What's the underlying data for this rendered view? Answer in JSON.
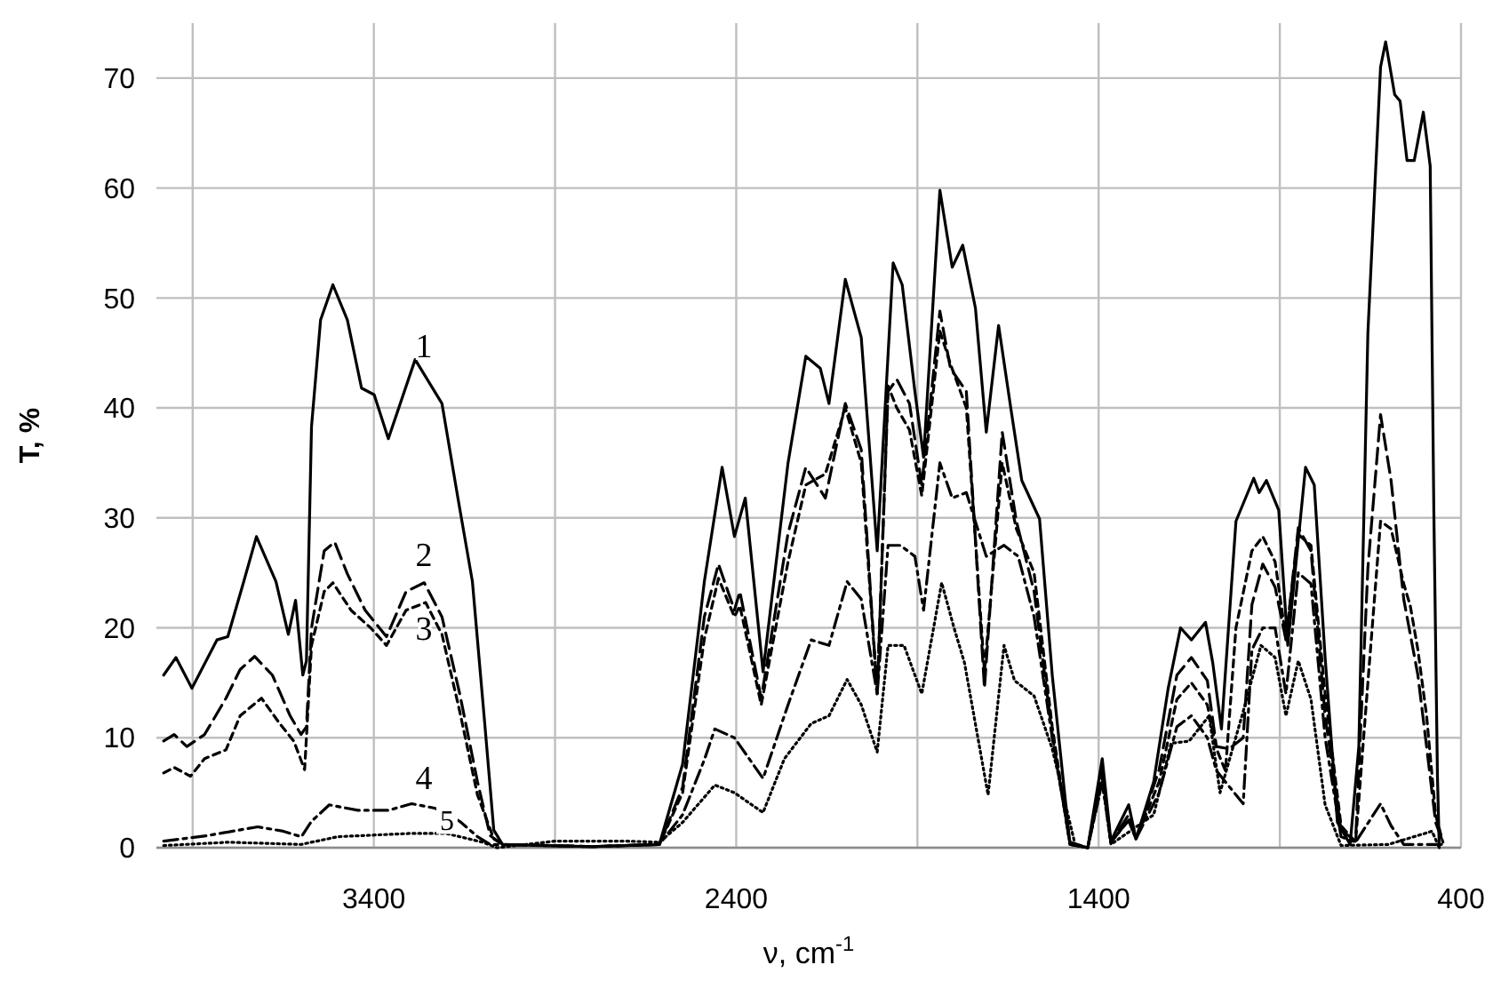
{
  "chart_data": {
    "type": "line",
    "xlabel": "ν, cm$^{-1}$",
    "ylabel": "T, %",
    "xlim": [
      4000,
      400
    ],
    "ylim": [
      0,
      75
    ],
    "xticks": [
      {
        "value": 3900,
        "label": null
      },
      3400,
      {
        "value": 2900,
        "label": null
      },
      2400,
      {
        "value": 1900,
        "label": null
      },
      1400,
      {
        "value": 900,
        "label": null
      },
      400
    ],
    "yticks": [
      0,
      10,
      20,
      30,
      40,
      50,
      60,
      70
    ],
    "grid": true,
    "marker": "none",
    "series": [
      {
        "name": "1",
        "color": "#000000",
        "line_style": "solid",
        "x": [
          3980,
          3946,
          3902,
          3833,
          3803,
          3759,
          3724,
          3670,
          3636,
          3616,
          3596,
          3586,
          3572,
          3547,
          3513,
          3473,
          3434,
          3399,
          3360,
          3286,
          3212,
          3168,
          3128,
          3094,
          3069,
          3045,
          2800,
          2612,
          2548,
          2488,
          2439,
          2405,
          2375,
          2326,
          2257,
          2208,
          2168,
          2144,
          2099,
          2055,
          2011,
          1967,
          1942,
          1907,
          1883,
          1838,
          1804,
          1775,
          1740,
          1710,
          1676,
          1642,
          1612,
          1563,
          1528,
          1479,
          1430,
          1390,
          1366,
          1317,
          1297,
          1248,
          1208,
          1174,
          1144,
          1105,
          1085,
          1061,
          1021,
          972,
          957,
          937,
          903,
          878,
          829,
          805,
          775,
          741,
          706,
          682,
          657,
          622,
          608,
          583,
          568,
          549,
          529,
          504,
          485,
          475,
          465,
          460
        ],
        "values": [
          15.7,
          17.3,
          14.5,
          18.9,
          19.2,
          24.2,
          28.3,
          24.2,
          19.4,
          22.5,
          15.7,
          17,
          38.3,
          48,
          51.2,
          48,
          41.8,
          41.2,
          37.2,
          44.4,
          40.4,
          31.8,
          24.2,
          11.3,
          1.6,
          0.3,
          0.1,
          0.3,
          7.6,
          24.2,
          34.6,
          28.3,
          31.8,
          16,
          35,
          44.7,
          43.6,
          40.4,
          51.7,
          46.4,
          27,
          53.2,
          51.2,
          41.5,
          35.5,
          59.8,
          52.8,
          54.8,
          49.1,
          37.8,
          47.5,
          39.9,
          33.4,
          29.9,
          15.7,
          0.3,
          0,
          8.1,
          0.6,
          3.9,
          0.8,
          6,
          14.5,
          20,
          18.9,
          20.5,
          16.8,
          10.8,
          29.7,
          33.6,
          32.3,
          33.4,
          30.7,
          18.4,
          34.6,
          33,
          17.3,
          2.3,
          0.3,
          9.2,
          46.8,
          71,
          73.3,
          68.5,
          67.9,
          62.5,
          62.5,
          66.9,
          62,
          30.7,
          6.5,
          0
        ]
      },
      {
        "name": "2",
        "color": "#000000",
        "line_style": "longdash",
        "x": [
          3980,
          3951,
          3916,
          3867,
          3808,
          3769,
          3729,
          3680,
          3631,
          3601,
          3586,
          3572,
          3537,
          3508,
          3473,
          3424,
          3365,
          3311,
          3261,
          3212,
          3163,
          3114,
          3079,
          3045,
          2800,
          2612,
          2548,
          2488,
          2449,
          2405,
          2390,
          2331,
          2257,
          2208,
          2154,
          2099,
          2055,
          2011,
          1981,
          1957,
          1922,
          1888,
          1838,
          1809,
          1765,
          1715,
          1666,
          1627,
          1578,
          1528,
          1479,
          1430,
          1390,
          1366,
          1317,
          1297,
          1233,
          1184,
          1144,
          1100,
          1075,
          1040,
          1001,
          977,
          947,
          913,
          883,
          849,
          814,
          775,
          731,
          691,
          657,
          622,
          593,
          558,
          519,
          495,
          470,
          450
        ],
        "values": [
          9.7,
          10.3,
          9.2,
          10.3,
          13.6,
          16.2,
          17.4,
          15.7,
          12,
          10.3,
          11,
          20,
          27,
          27.8,
          24.9,
          21.6,
          19.2,
          23.3,
          24.1,
          21,
          14,
          6,
          1.1,
          0.3,
          0.1,
          0.3,
          5.5,
          21,
          25.8,
          21.6,
          23.3,
          13.6,
          28.6,
          34.6,
          31.8,
          40.4,
          36.2,
          14,
          41.5,
          42.6,
          40.4,
          33,
          48.8,
          43.6,
          41.5,
          14.5,
          37.8,
          29.7,
          23.3,
          10.3,
          0.3,
          0,
          7,
          0.5,
          3,
          0.8,
          7.1,
          15.7,
          17.3,
          15.2,
          9.2,
          9,
          10,
          22.1,
          25.8,
          23.7,
          18.9,
          29.1,
          27,
          12,
          1.6,
          0.6,
          25.4,
          39.4,
          33.4,
          22.6,
          15.7,
          9.2,
          2.3,
          0.5
        ]
      },
      {
        "name": "3",
        "color": "#000000",
        "line_style": "dashed",
        "x": [
          3980,
          3951,
          3906,
          3867,
          3808,
          3769,
          3710,
          3660,
          3621,
          3591,
          3572,
          3537,
          3513,
          3463,
          3409,
          3365,
          3311,
          3257,
          3212,
          3163,
          3114,
          3069,
          3045,
          2800,
          2612,
          2548,
          2488,
          2449,
          2405,
          2390,
          2331,
          2257,
          2208,
          2154,
          2099,
          2055,
          2011,
          1981,
          1957,
          1922,
          1888,
          1838,
          1809,
          1765,
          1715,
          1666,
          1627,
          1578,
          1528,
          1479,
          1430,
          1390,
          1366,
          1317,
          1297,
          1233,
          1184,
          1144,
          1100,
          1075,
          1050,
          1021,
          977,
          947,
          913,
          883,
          849,
          814,
          775,
          731,
          691,
          657,
          622,
          593,
          558,
          540,
          519,
          495,
          470,
          450
        ],
        "values": [
          6.8,
          7.3,
          6.5,
          8.1,
          8.9,
          12,
          13.6,
          11.3,
          9.7,
          7.1,
          18.4,
          23.3,
          24.1,
          21.6,
          20,
          18.4,
          21.6,
          22.3,
          19.4,
          12.4,
          4.8,
          0.8,
          0.3,
          0.1,
          0.3,
          5,
          19,
          24.5,
          21,
          22,
          13,
          26,
          33,
          34,
          40,
          35,
          14,
          42,
          40,
          38,
          32,
          47,
          44,
          40,
          16,
          35,
          29,
          25,
          11,
          0.3,
          0,
          6.5,
          0.5,
          2.5,
          0.8,
          6,
          13.5,
          15,
          13,
          9,
          7,
          20,
          27,
          28.3,
          26,
          19,
          28.5,
          27.5,
          14,
          2,
          0.5,
          15,
          29.7,
          29,
          24,
          22,
          18,
          12,
          3,
          0.5
        ]
      },
      {
        "name": "4",
        "color": "#000000",
        "line_style": "dashdot",
        "x": [
          3980,
          3860,
          3720,
          3650,
          3600,
          3572,
          3523,
          3444,
          3360,
          3296,
          3232,
          3163,
          3114,
          3079,
          2800,
          2612,
          2548,
          2488,
          2459,
          2405,
          2326,
          2257,
          2193,
          2144,
          2094,
          2055,
          2011,
          1981,
          1947,
          1907,
          1883,
          1838,
          1804,
          1765,
          1710,
          1661,
          1622,
          1578,
          1528,
          1479,
          1430,
          1390,
          1366,
          1317,
          1297,
          1233,
          1184,
          1144,
          1100,
          1075,
          1001,
          977,
          947,
          913,
          883,
          849,
          814,
          775,
          731,
          691,
          622,
          593,
          558,
          450
        ],
        "values": [
          0.6,
          1.1,
          1.9,
          1.5,
          1,
          2.4,
          3.9,
          3.4,
          3.4,
          4,
          3.6,
          2.4,
          1,
          0.3,
          0.1,
          0.3,
          3,
          8,
          10.8,
          10,
          6.3,
          13,
          18.9,
          18.4,
          24.2,
          22.6,
          14,
          27.5,
          27.5,
          26.5,
          21.6,
          35,
          31.8,
          32.3,
          26.5,
          27.5,
          26.5,
          21,
          10,
          0.5,
          0,
          6,
          0.5,
          2.5,
          0.8,
          5,
          11,
          12,
          10,
          7,
          4,
          18,
          20,
          20,
          14,
          25,
          24,
          10,
          1,
          0.5,
          4,
          2,
          0.3,
          0.3
        ]
      },
      {
        "name": "5",
        "color": "#000000",
        "line_style": "dotted",
        "x": [
          3980,
          3800,
          3600,
          3500,
          3300,
          3200,
          3100,
          3060,
          2900,
          2700,
          2612,
          2548,
          2459,
          2405,
          2326,
          2267,
          2193,
          2144,
          2094,
          2055,
          2011,
          1981,
          1937,
          1888,
          1833,
          1799,
          1770,
          1705,
          1661,
          1632,
          1578,
          1528,
          1465,
          1430,
          1390,
          1366,
          1248,
          1200,
          1150,
          1095,
          1065,
          1001,
          952,
          913,
          883,
          849,
          814,
          775,
          731,
          600,
          480,
          460
        ],
        "values": [
          0.2,
          0.5,
          0.3,
          1,
          1.3,
          1.3,
          0.5,
          0,
          0.6,
          0.6,
          0.5,
          2.3,
          5.7,
          5,
          3.2,
          8.1,
          11.3,
          12,
          15.3,
          13,
          8.7,
          18.4,
          18.4,
          14,
          24.1,
          20,
          16.8,
          4.8,
          18.4,
          15.2,
          13.8,
          9,
          0.3,
          0,
          6,
          0.3,
          3,
          9.5,
          9.7,
          12,
          5,
          12.4,
          18.4,
          17.3,
          12,
          17,
          13.5,
          3.9,
          0.2,
          0.3,
          1.5,
          0
        ]
      }
    ]
  }
}
